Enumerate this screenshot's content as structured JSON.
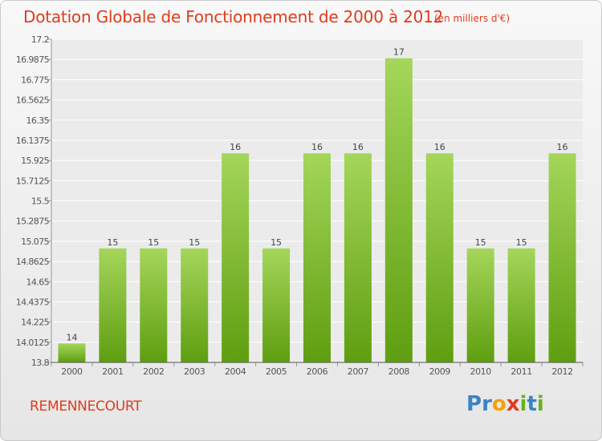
{
  "header": {
    "title": "Dotation Globale de Fonctionnement de 2000 à 2012",
    "unit": "(en milliers d'€)"
  },
  "footer": {
    "place": "REMENNECOURT",
    "logo": [
      "P",
      "r",
      "o",
      "x",
      "i",
      "t",
      "i"
    ]
  },
  "colors": {
    "bar_top": "#a4d65a",
    "bar_bottom": "#5f9e10",
    "title": "#e03c1c",
    "logo": [
      "#3a84c6",
      "#3a84c6",
      "#f2a20c",
      "#e03c1c",
      "#6ab023",
      "#3a84c6",
      "#6ab023"
    ]
  },
  "chart_data": {
    "type": "bar",
    "categories": [
      "2000",
      "2001",
      "2002",
      "2003",
      "2004",
      "2005",
      "2006",
      "2007",
      "2008",
      "2009",
      "2010",
      "2011",
      "2012"
    ],
    "values": [
      14,
      15,
      15,
      15,
      16,
      15,
      16,
      16,
      17,
      16,
      15,
      15,
      16
    ],
    "data_labels": [
      "14",
      "15",
      "15",
      "15",
      "16",
      "15",
      "16",
      "16",
      "17",
      "16",
      "15",
      "15",
      "16"
    ],
    "ylim": [
      13.8,
      17.2
    ],
    "yticks": [
      "13.8",
      "14.0125",
      "14.225",
      "14.4375",
      "14.65",
      "14.8625",
      "15.075",
      "15.2875",
      "15.5",
      "15.7125",
      "15.925",
      "16.1375",
      "16.35",
      "16.5625",
      "16.775",
      "16.9875",
      "17.2"
    ],
    "grid": true
  }
}
